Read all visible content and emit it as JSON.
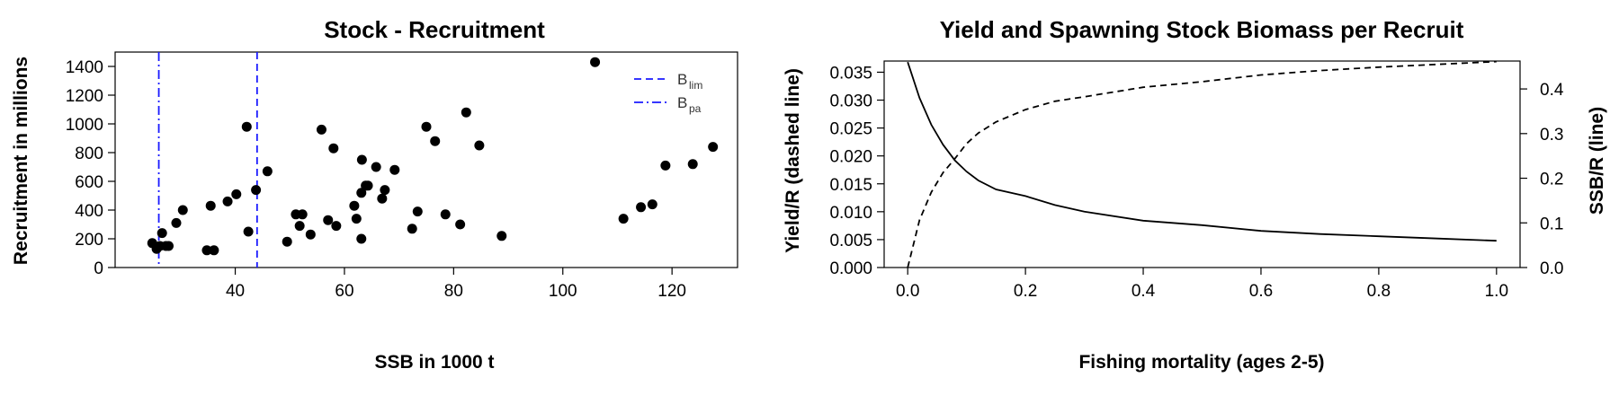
{
  "chart_data": [
    {
      "type": "scatter",
      "title": "Stock - Recruitment",
      "xlabel": "SSB in 1000 t",
      "ylabel": "Recruitment in millions",
      "xlim": [
        18,
        132
      ],
      "ylim": [
        0,
        1500
      ],
      "xticks": [
        40,
        60,
        80,
        100,
        120
      ],
      "yticks": [
        0,
        200,
        400,
        600,
        800,
        1000,
        1200,
        1400
      ],
      "grid": false,
      "legend_position": "top-right",
      "points": [
        [
          24.8,
          170
        ],
        [
          25.6,
          130
        ],
        [
          26.2,
          150
        ],
        [
          27.3,
          150
        ],
        [
          27.8,
          150
        ],
        [
          26.6,
          240
        ],
        [
          29.2,
          310
        ],
        [
          30.4,
          400
        ],
        [
          34.8,
          120
        ],
        [
          35.5,
          430
        ],
        [
          36.1,
          120
        ],
        [
          38.6,
          460
        ],
        [
          40.2,
          510
        ],
        [
          42.1,
          980
        ],
        [
          42.4,
          250
        ],
        [
          43.8,
          540
        ],
        [
          45.9,
          670
        ],
        [
          49.5,
          180
        ],
        [
          51.1,
          370
        ],
        [
          51.8,
          290
        ],
        [
          52.3,
          370
        ],
        [
          53.8,
          230
        ],
        [
          55.8,
          960
        ],
        [
          57.0,
          330
        ],
        [
          58.0,
          830
        ],
        [
          58.5,
          290
        ],
        [
          61.8,
          430
        ],
        [
          62.2,
          340
        ],
        [
          63.1,
          200
        ],
        [
          63.1,
          520
        ],
        [
          63.2,
          750
        ],
        [
          63.9,
          570
        ],
        [
          64.3,
          570
        ],
        [
          65.8,
          700
        ],
        [
          66.9,
          480
        ],
        [
          67.4,
          540
        ],
        [
          69.2,
          680
        ],
        [
          72.4,
          270
        ],
        [
          73.4,
          390
        ],
        [
          75.0,
          980
        ],
        [
          76.6,
          880
        ],
        [
          78.5,
          370
        ],
        [
          81.2,
          300
        ],
        [
          82.3,
          1080
        ],
        [
          84.7,
          850
        ],
        [
          88.8,
          220
        ],
        [
          105.9,
          1430
        ],
        [
          111.1,
          340
        ],
        [
          114.3,
          420
        ],
        [
          116.4,
          440
        ],
        [
          118.8,
          710
        ],
        [
          123.8,
          720
        ],
        [
          127.5,
          840
        ]
      ],
      "reference_lines": [
        {
          "label_main": "B",
          "label_sub": "lim",
          "x": 44.0,
          "style": "dashed",
          "color": "#1a1aff"
        },
        {
          "label_main": "B",
          "label_sub": "pa",
          "x": 26.0,
          "style": "dashdot",
          "color": "#1a1aff"
        }
      ]
    },
    {
      "type": "line",
      "title": "Yield and Spawning Stock Biomass per Recruit",
      "xlabel": "Fishing mortality (ages 2-5)",
      "ylabel_left": "Yield/R (dashed line)",
      "ylabel_right": "SSB/R (line)",
      "xlim": [
        -0.04,
        1.04
      ],
      "ylim_left": [
        0,
        0.037
      ],
      "ylim_right": [
        0,
        0.4625
      ],
      "xticks": [
        "0.0",
        "0.2",
        "0.4",
        "0.6",
        "0.8",
        "1.0"
      ],
      "yticks_left": [
        "0.000",
        "0.005",
        "0.010",
        "0.015",
        "0.020",
        "0.025",
        "0.030",
        "0.035"
      ],
      "yticks_right": [
        "0.0",
        "0.1",
        "0.2",
        "0.3",
        "0.4"
      ],
      "series": [
        {
          "style": "dashed",
          "axis": "left",
          "x": [
            0,
            0.02,
            0.04,
            0.06,
            0.08,
            0.1,
            0.12,
            0.15,
            0.2,
            0.25,
            0.3,
            0.4,
            0.5,
            0.6,
            0.7,
            0.8,
            0.9,
            1.0
          ],
          "values": [
            0,
            0.0085,
            0.0135,
            0.017,
            0.0195,
            0.0222,
            0.0241,
            0.0261,
            0.0283,
            0.0298,
            0.0306,
            0.0323,
            0.0333,
            0.0345,
            0.0353,
            0.0359,
            0.0364,
            0.0369
          ]
        },
        {
          "style": "solid",
          "axis": "right",
          "x": [
            0,
            0.02,
            0.04,
            0.06,
            0.08,
            0.1,
            0.12,
            0.15,
            0.2,
            0.25,
            0.3,
            0.4,
            0.5,
            0.6,
            0.7,
            0.8,
            0.9,
            1.0
          ],
          "values": [
            0.46,
            0.38,
            0.32,
            0.275,
            0.24,
            0.215,
            0.195,
            0.175,
            0.16,
            0.14,
            0.125,
            0.105,
            0.095,
            0.082,
            0.075,
            0.07,
            0.065,
            0.06
          ]
        }
      ]
    }
  ]
}
